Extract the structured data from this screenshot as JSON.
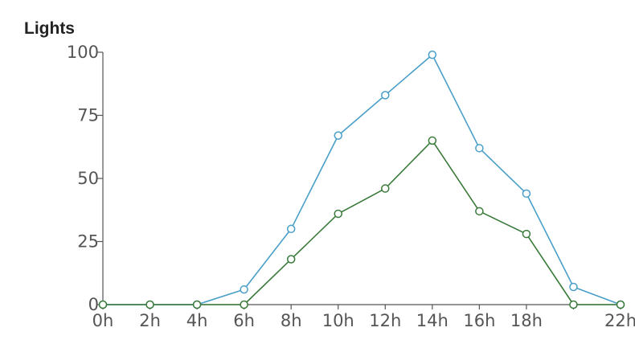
{
  "chart_data": {
    "type": "line",
    "title": "Lights",
    "xlabel": "",
    "ylabel": "",
    "x": [
      0,
      2,
      4,
      6,
      8,
      10,
      12,
      14,
      16,
      18,
      20,
      22
    ],
    "x_tick_labels": [
      "0h",
      "2h",
      "4h",
      "6h",
      "8h",
      "10h",
      "12h",
      "14h",
      "16h",
      "18h",
      "",
      "22h"
    ],
    "y_ticks": [
      0,
      25,
      50,
      75,
      100
    ],
    "xlim": [
      0,
      22
    ],
    "ylim": [
      0,
      100
    ],
    "grid": false,
    "series": [
      {
        "color": "#4a9fc8",
        "values": [
          0,
          0,
          0,
          6,
          30,
          67,
          83,
          99,
          62,
          44,
          7,
          0
        ]
      },
      {
        "color": "#3a7a3a",
        "values": [
          0,
          0,
          0,
          0,
          18,
          36,
          46,
          65,
          37,
          28,
          0,
          0
        ]
      }
    ]
  }
}
